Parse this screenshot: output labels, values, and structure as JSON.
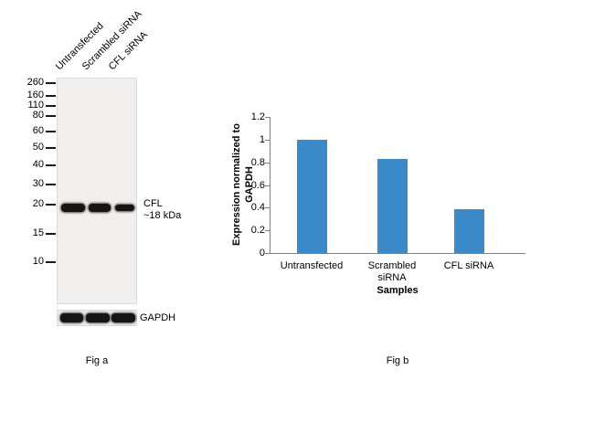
{
  "figure_a": {
    "lane_labels": [
      "Untransfected",
      "Scrambled siRNA",
      "CFL siRNA"
    ],
    "mw_markers": [
      "260",
      "160",
      "110",
      "80",
      "60",
      "50",
      "40",
      "30",
      "20",
      "15",
      "10"
    ],
    "band_label_line1": "CFL",
    "band_label_line2": "~18 kDa",
    "loading_control_label": "GAPDH",
    "caption": "Fig a"
  },
  "chart_data": {
    "type": "bar",
    "categories": [
      "Untransfected",
      "Scrambled siRNA",
      "CFL siRNA"
    ],
    "values": [
      1.0,
      0.83,
      0.39
    ],
    "title": "",
    "xlabel": "Samples",
    "ylabel": "Expression normalized to GAPDH",
    "ylabel_lines": [
      "Expression normalized to",
      "GAPDH"
    ],
    "ylim": [
      0,
      1.2
    ],
    "ytick_step": 0.2,
    "ytick_labels": [
      "0",
      "0.2",
      "0.4",
      "0.6",
      "0.8",
      "1",
      "1.2"
    ],
    "bar_color": "#3a8ac9",
    "grid": false,
    "legend": "none"
  },
  "figure_b": {
    "caption": "Fig b"
  }
}
